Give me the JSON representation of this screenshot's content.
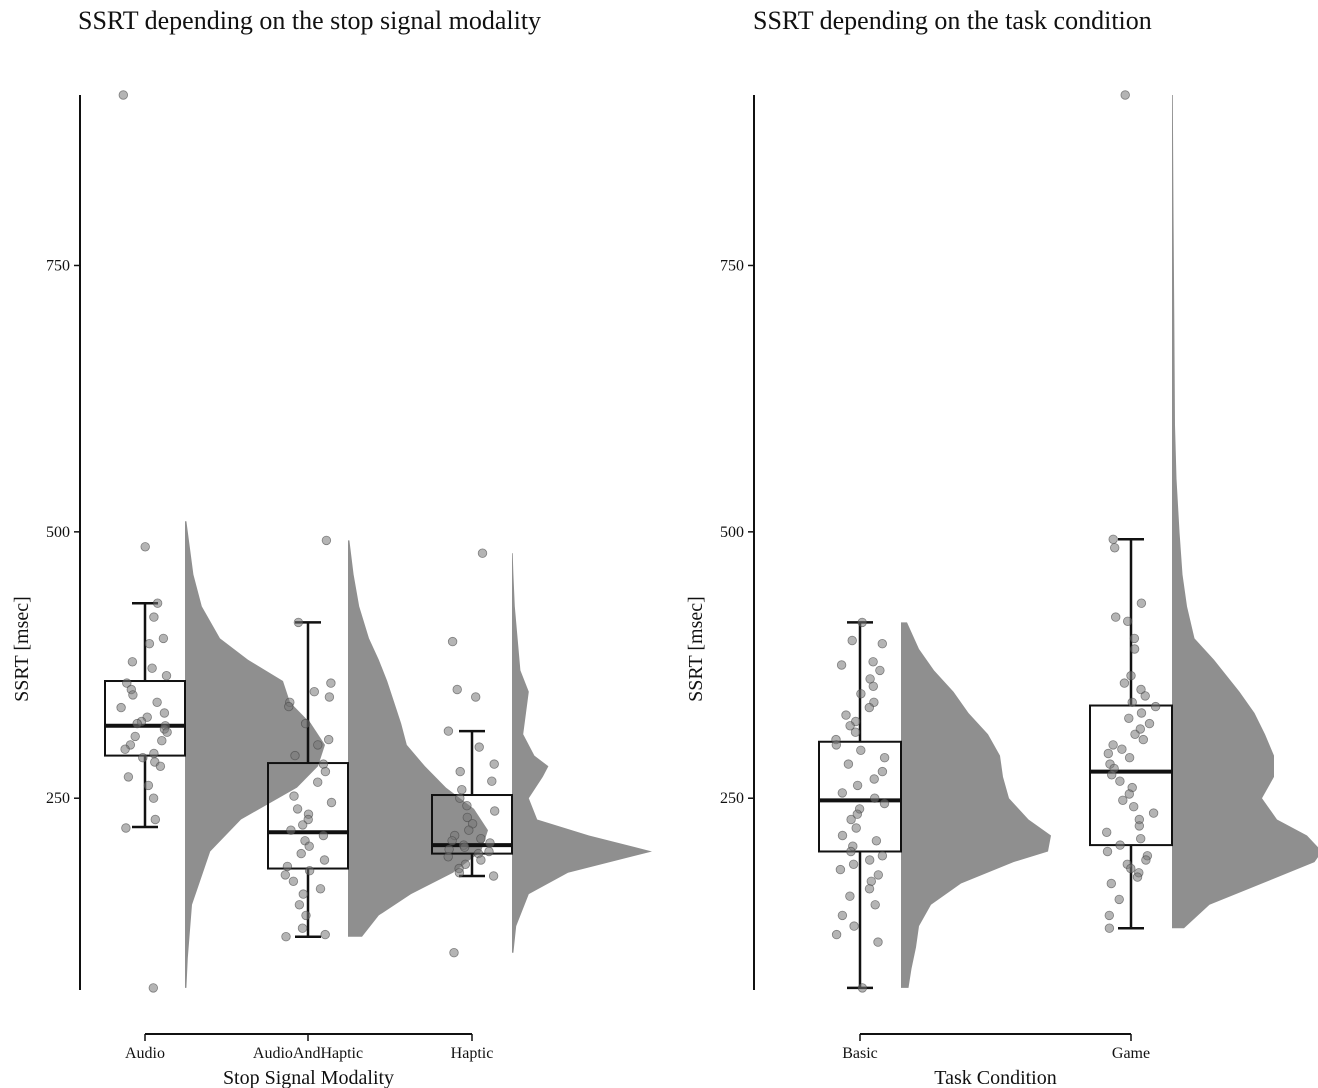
{
  "chart_data": [
    {
      "type": "raincloud",
      "title": "SSRT depending on the stop signal modality",
      "xlabel": "Stop Signal Modality",
      "ylabel": "SSRT [msec]",
      "ylim": [
        70,
        910
      ],
      "yticks": [
        250,
        500,
        750
      ],
      "grid": false,
      "categories": [
        "Audio",
        "AudioAndHaptic",
        "Haptic"
      ],
      "boxes": [
        {
          "category": "Audio",
          "whisker_low": 223,
          "q1": 290,
          "median": 318,
          "q3": 360,
          "whisker_high": 433
        },
        {
          "category": "AudioAndHaptic",
          "whisker_low": 120,
          "q1": 184,
          "median": 218,
          "q3": 283,
          "whisker_high": 415
        },
        {
          "category": "Haptic",
          "whisker_low": 177,
          "q1": 198,
          "median": 206,
          "q3": 253,
          "whisker_high": 313
        }
      ],
      "points": [
        {
          "category": "Audio",
          "values": [
            910,
            486,
            433,
            420,
            400,
            395,
            378,
            372,
            365,
            358,
            352,
            347,
            340,
            335,
            330,
            326,
            322,
            320,
            318,
            315,
            312,
            308,
            304,
            300,
            296,
            292,
            288,
            284,
            280,
            270,
            262,
            250,
            230,
            222,
            72
          ]
        },
        {
          "category": "AudioAndHaptic",
          "values": [
            492,
            415,
            358,
            350,
            345,
            340,
            336,
            320,
            305,
            300,
            290,
            282,
            275,
            265,
            252,
            246,
            240,
            235,
            230,
            225,
            220,
            215,
            210,
            205,
            198,
            192,
            186,
            182,
            178,
            172,
            165,
            160,
            150,
            140,
            128,
            122,
            120
          ]
        },
        {
          "category": "Haptic",
          "values": [
            480,
            397,
            352,
            345,
            313,
            298,
            282,
            275,
            266,
            258,
            250,
            243,
            238,
            232,
            226,
            220,
            215,
            212,
            210,
            208,
            206,
            204,
            202,
            200,
            198,
            195,
            192,
            188,
            184,
            180,
            177,
            105
          ]
        }
      ],
      "density": [
        {
          "category": "Audio",
          "y": [
            72,
            100,
            150,
            200,
            230,
            260,
            280,
            300,
            320,
            340,
            360,
            380,
            400,
            430,
            460,
            490,
            510
          ],
          "d": [
            0.01,
            0.02,
            0.05,
            0.18,
            0.4,
            0.8,
            0.95,
            1.0,
            0.9,
            0.75,
            0.7,
            0.45,
            0.25,
            0.12,
            0.06,
            0.03,
            0.01
          ]
        },
        {
          "category": "AudioAndHaptic",
          "y": [
            120,
            140,
            160,
            180,
            200,
            220,
            240,
            260,
            280,
            300,
            320,
            340,
            360,
            380,
            400,
            430,
            460,
            492
          ],
          "d": [
            0.1,
            0.22,
            0.45,
            0.75,
            0.95,
            1.0,
            0.9,
            0.7,
            0.55,
            0.42,
            0.38,
            0.33,
            0.28,
            0.22,
            0.15,
            0.08,
            0.04,
            0.01
          ]
        },
        {
          "category": "Haptic",
          "y": [
            105,
            130,
            160,
            180,
            200,
            215,
            230,
            250,
            270,
            280,
            290,
            310,
            330,
            350,
            370,
            400,
            430,
            460,
            480
          ],
          "d": [
            0.01,
            0.03,
            0.12,
            0.4,
            1.0,
            0.55,
            0.18,
            0.12,
            0.22,
            0.26,
            0.16,
            0.08,
            0.1,
            0.12,
            0.06,
            0.04,
            0.02,
            0.01,
            0.005
          ]
        }
      ]
    },
    {
      "type": "raincloud",
      "title": "SSRT depending on the task condition",
      "xlabel": "Task Condition",
      "ylabel": "SSRT [msec]",
      "ylim": [
        70,
        910
      ],
      "yticks": [
        250,
        500,
        750
      ],
      "grid": false,
      "categories": [
        "Basic",
        "Game"
      ],
      "boxes": [
        {
          "category": "Basic",
          "whisker_low": 72,
          "q1": 200,
          "median": 248,
          "q3": 303,
          "whisker_high": 415
        },
        {
          "category": "Game",
          "whisker_low": 128,
          "q1": 206,
          "median": 275,
          "q3": 337,
          "whisker_high": 493
        }
      ],
      "points": [
        {
          "category": "Basic",
          "values": [
            415,
            398,
            395,
            378,
            375,
            370,
            362,
            355,
            348,
            340,
            335,
            328,
            322,
            318,
            312,
            305,
            300,
            295,
            288,
            282,
            275,
            268,
            262,
            255,
            250,
            245,
            240,
            235,
            230,
            222,
            215,
            210,
            205,
            200,
            196,
            192,
            188,
            183,
            178,
            172,
            165,
            158,
            150,
            140,
            130,
            122,
            115,
            72
          ]
        },
        {
          "category": "Game",
          "values": [
            910,
            493,
            485,
            433,
            420,
            416,
            400,
            390,
            365,
            358,
            352,
            346,
            340,
            336,
            330,
            325,
            320,
            315,
            310,
            305,
            300,
            296,
            292,
            288,
            282,
            278,
            272,
            266,
            260,
            254,
            248,
            242,
            236,
            230,
            224,
            218,
            212,
            206,
            200,
            196,
            192,
            188,
            184,
            180,
            176,
            170,
            155,
            140,
            128
          ]
        }
      ],
      "density": [
        {
          "category": "Basic",
          "y": [
            72,
            90,
            110,
            130,
            150,
            170,
            190,
            200,
            215,
            230,
            250,
            270,
            290,
            310,
            330,
            350,
            370,
            390,
            415
          ],
          "d": [
            0.05,
            0.07,
            0.1,
            0.12,
            0.2,
            0.4,
            0.75,
            0.98,
            1.0,
            0.85,
            0.72,
            0.68,
            0.66,
            0.58,
            0.45,
            0.35,
            0.22,
            0.12,
            0.04
          ]
        },
        {
          "category": "Game",
          "y": [
            128,
            150,
            170,
            190,
            200,
            215,
            230,
            250,
            270,
            290,
            310,
            330,
            350,
            380,
            400,
            430,
            460,
            500,
            550,
            600,
            700,
            800,
            910
          ],
          "d": [
            0.08,
            0.25,
            0.6,
            0.95,
            1.0,
            0.9,
            0.7,
            0.6,
            0.68,
            0.68,
            0.62,
            0.55,
            0.45,
            0.28,
            0.15,
            0.1,
            0.07,
            0.05,
            0.03,
            0.02,
            0.015,
            0.01,
            0.005
          ]
        }
      ]
    }
  ]
}
